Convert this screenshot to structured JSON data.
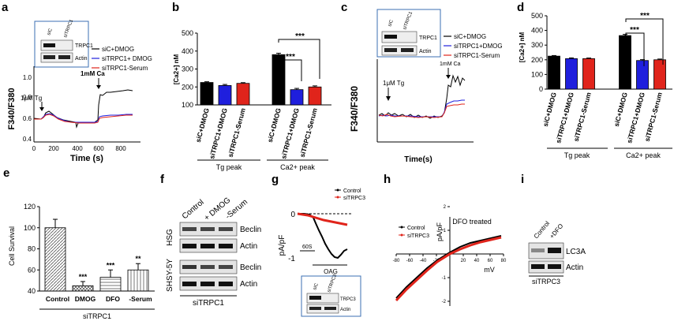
{
  "panels": {
    "a": {
      "letter": "a",
      "ylabel": "F340/F380",
      "xlabel": "Time (s)",
      "yticks": [
        "0.4",
        "0.6",
        "0.8",
        "1.0"
      ],
      "xticks": [
        "0",
        "200",
        "400",
        "600",
        "800"
      ],
      "annot_tg": "1μM Tg",
      "annot_ca": "1mM Ca",
      "legend": [
        "siC+DMOG",
        "siTRPC1+ DMOG",
        "siTRPC1-Serum"
      ],
      "blot_lanes": [
        "siC",
        "siTRPC1"
      ],
      "blot_bands": [
        "TRPC1",
        "Actin"
      ]
    },
    "b": {
      "letter": "b",
      "ylabel": "[Ca2+] nM",
      "group_labels": [
        "Tg peak",
        "Ca2+ peak"
      ],
      "sig": [
        "***",
        "***"
      ]
    },
    "c": {
      "letter": "c",
      "ylabel": "F340/F380",
      "xlabel": "Time(s)",
      "annot_tg": "1μM Tg",
      "annot_ca": "1mM Ca",
      "legend": [
        "siC+DMOG",
        "siTRPC1+DMOG",
        "siTRPC1-Serum"
      ],
      "blot_lanes": [
        "siC",
        "siTRPC1"
      ],
      "blot_bands": [
        "TRPC1",
        "Actin"
      ]
    },
    "d": {
      "letter": "d",
      "ylabel": "[Ca2+] nM",
      "group_labels": [
        "Tg peak",
        "Ca2+ peak"
      ],
      "sig": [
        "***",
        "***"
      ]
    },
    "e": {
      "letter": "e",
      "ylabel": "Cell Survival",
      "group_label": "siTRPC1"
    },
    "f": {
      "letter": "f",
      "lanes": [
        "Control",
        "+ DMOG",
        "-Serum"
      ],
      "cell_lines": [
        "HSG",
        "SHSY-5Y"
      ],
      "bands": [
        "Beclin",
        "Actin",
        "Beclin",
        "Actin"
      ],
      "footer": "siTRPC1"
    },
    "g": {
      "letter": "g",
      "ylabel": "pA/pF",
      "yticks": [
        "0",
        "-1"
      ],
      "scale_label": "60S",
      "agonist": "OAG",
      "legend": [
        "Control",
        "siTRPC3"
      ],
      "blot_lanes": [
        "siC",
        "siTRPC3"
      ],
      "blot_bands": [
        "TRPC3",
        "Actin"
      ]
    },
    "h": {
      "letter": "h",
      "title": "DFO treated",
      "ylabel": "pA/pF",
      "xlabel": "mV",
      "legend": [
        "Control",
        "siTRPC3"
      ]
    },
    "i": {
      "letter": "i",
      "lanes": [
        "Control",
        "+DFO"
      ],
      "bands": [
        "LC3A",
        "Actin"
      ],
      "footer": "siTRPC3"
    }
  },
  "colors": {
    "black": "#000000",
    "blue": "#1f1fdd",
    "red": "#e0241b"
  },
  "chart_data": [
    {
      "id": "b",
      "type": "bar",
      "categories": [
        "siC+DMOG",
        "siTRPC1+DMOG",
        "siTRPC1-Serum",
        "siC+DMOG",
        "siTRPC1+DMOG",
        "siTRPC1-Serum"
      ],
      "values": [
        225,
        208,
        220,
        380,
        185,
        200
      ],
      "errors": [
        4,
        6,
        4,
        8,
        7,
        6
      ],
      "colors": [
        "#000000",
        "#1f1fdd",
        "#e0241b",
        "#000000",
        "#1f1fdd",
        "#e0241b"
      ],
      "ylabel": "[Ca2+] nM",
      "ylim": [
        100,
        500
      ],
      "yticks": [
        100,
        200,
        300,
        400,
        500
      ]
    },
    {
      "id": "d",
      "type": "bar",
      "categories": [
        "siC+DMOG",
        "siTRPC1+DMOG",
        "siTRPC1-Serum",
        "siC+DMOG",
        "siTRPC1+DMOG",
        "siTRPC1-Serum"
      ],
      "values": [
        225,
        208,
        208,
        365,
        195,
        200
      ],
      "errors": [
        4,
        5,
        4,
        8,
        6,
        5
      ],
      "colors": [
        "#000000",
        "#1f1fdd",
        "#e0241b",
        "#000000",
        "#1f1fdd",
        "#e0241b"
      ],
      "ylabel": "[Ca2+] nM",
      "ylim": [
        0,
        500
      ],
      "yticks": [
        0,
        100,
        200,
        300,
        400,
        500
      ]
    },
    {
      "id": "e",
      "type": "bar",
      "categories": [
        "Control",
        "DMOG",
        "DFO",
        "-Serum"
      ],
      "values": [
        100,
        45,
        53,
        60
      ],
      "errors": [
        8,
        4,
        7,
        6
      ],
      "sig": [
        "",
        "***",
        "***",
        "**"
      ],
      "ylabel": "Cell Survival",
      "ylim": [
        40,
        120
      ],
      "yticks": [
        40,
        60,
        80,
        100,
        120
      ]
    }
  ]
}
